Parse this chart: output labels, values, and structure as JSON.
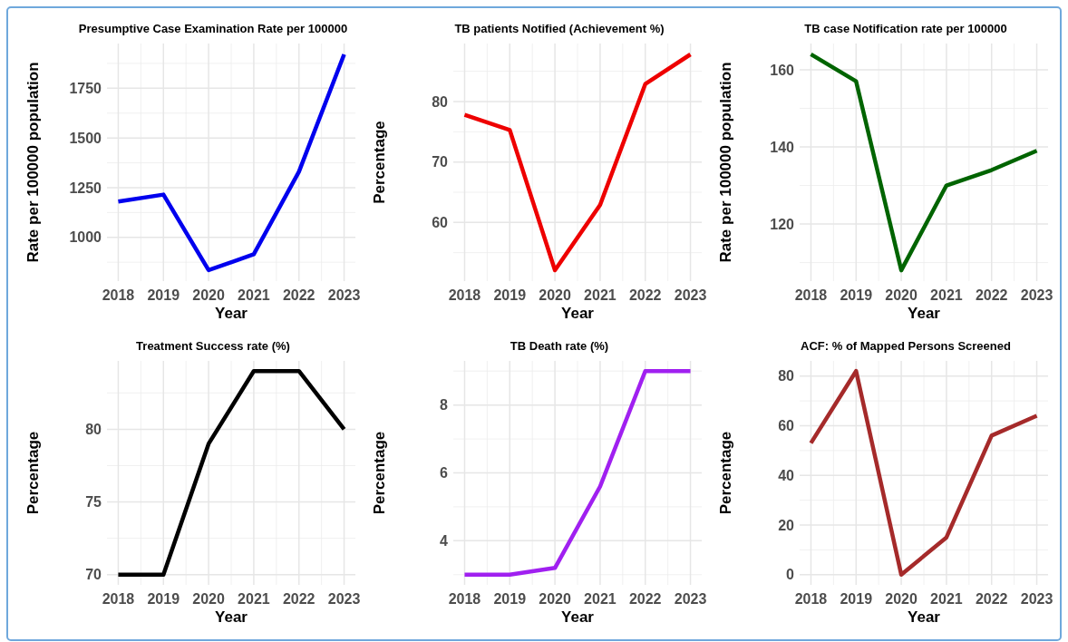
{
  "chart_data": [
    {
      "type": "line",
      "title": "Presumptive Case Examination Rate per 100000",
      "xlabel": "Year",
      "ylabel": "Rate per 100000 population",
      "x": [
        2018,
        2019,
        2020,
        2021,
        2022,
        2023
      ],
      "series": [
        {
          "color": "#0000ee",
          "values": [
            1180,
            1215,
            835,
            915,
            1330,
            1920
          ]
        }
      ],
      "xlim": [
        2017.75,
        2023.25
      ],
      "xticks": [
        2018,
        2019,
        2020,
        2021,
        2022,
        2023
      ],
      "ylim": [
        780,
        1975
      ],
      "yticks": [
        1000,
        1250,
        1500,
        1750
      ],
      "grid": true
    },
    {
      "type": "line",
      "title": "TB patients Notified (Achievement %)",
      "xlabel": "Year",
      "ylabel": "Percentage",
      "x": [
        2018,
        2019,
        2020,
        2021,
        2022,
        2023
      ],
      "series": [
        {
          "color": "#ee0000",
          "values": [
            77.8,
            75.3,
            52.1,
            62.9,
            82.9,
            87.8
          ]
        }
      ],
      "xlim": [
        2017.75,
        2023.25
      ],
      "xticks": [
        2018,
        2019,
        2020,
        2021,
        2022,
        2023
      ],
      "ylim": [
        50.3,
        89.6
      ],
      "yticks": [
        60,
        70,
        80
      ],
      "grid": true
    },
    {
      "type": "line",
      "title": "TB case Notification rate per 100000",
      "xlabel": "Year",
      "ylabel": "Rate per 100000 population",
      "x": [
        2018,
        2019,
        2020,
        2021,
        2022,
        2023
      ],
      "series": [
        {
          "color": "#006400",
          "values": [
            164,
            157,
            108,
            130,
            134,
            139
          ]
        }
      ],
      "xlim": [
        2017.75,
        2023.25
      ],
      "xticks": [
        2018,
        2019,
        2020,
        2021,
        2022,
        2023
      ],
      "ylim": [
        105.2,
        166.8
      ],
      "yticks": [
        120,
        140,
        160
      ],
      "grid": true
    },
    {
      "type": "line",
      "title": "Treatment Success rate (%)",
      "xlabel": "Year",
      "ylabel": "Percentage",
      "x": [
        2018,
        2019,
        2020,
        2021,
        2022,
        2023
      ],
      "series": [
        {
          "color": "#000000",
          "values": [
            70,
            70,
            79,
            84,
            84,
            80
          ]
        }
      ],
      "xlim": [
        2017.75,
        2023.25
      ],
      "xticks": [
        2018,
        2019,
        2020,
        2021,
        2022,
        2023
      ],
      "ylim": [
        69.3,
        84.7
      ],
      "yticks": [
        70,
        75,
        80
      ],
      "grid": true
    },
    {
      "type": "line",
      "title": "TB Death rate (%)",
      "xlabel": "Year",
      "ylabel": "Percentage",
      "x": [
        2018,
        2019,
        2020,
        2021,
        2022,
        2023
      ],
      "series": [
        {
          "color": "#a020f0",
          "values": [
            3,
            3,
            3.2,
            5.6,
            9,
            9
          ]
        }
      ],
      "xlim": [
        2017.75,
        2023.25
      ],
      "xticks": [
        2018,
        2019,
        2020,
        2021,
        2022,
        2023
      ],
      "ylim": [
        2.7,
        9.3
      ],
      "yticks": [
        4,
        6,
        8
      ],
      "grid": true
    },
    {
      "type": "line",
      "title": "ACF: % of Mapped Persons Screened",
      "xlabel": "Year",
      "ylabel": "Percentage",
      "x": [
        2018,
        2019,
        2020,
        2021,
        2022,
        2023
      ],
      "series": [
        {
          "color": "#a52a2a",
          "values": [
            53,
            82,
            0,
            15,
            56,
            64
          ]
        }
      ],
      "xlim": [
        2017.75,
        2023.25
      ],
      "xticks": [
        2018,
        2019,
        2020,
        2021,
        2022,
        2023
      ],
      "ylim": [
        -4.1,
        86.1
      ],
      "yticks": [
        0,
        20,
        40,
        60,
        80
      ],
      "grid": true
    }
  ]
}
